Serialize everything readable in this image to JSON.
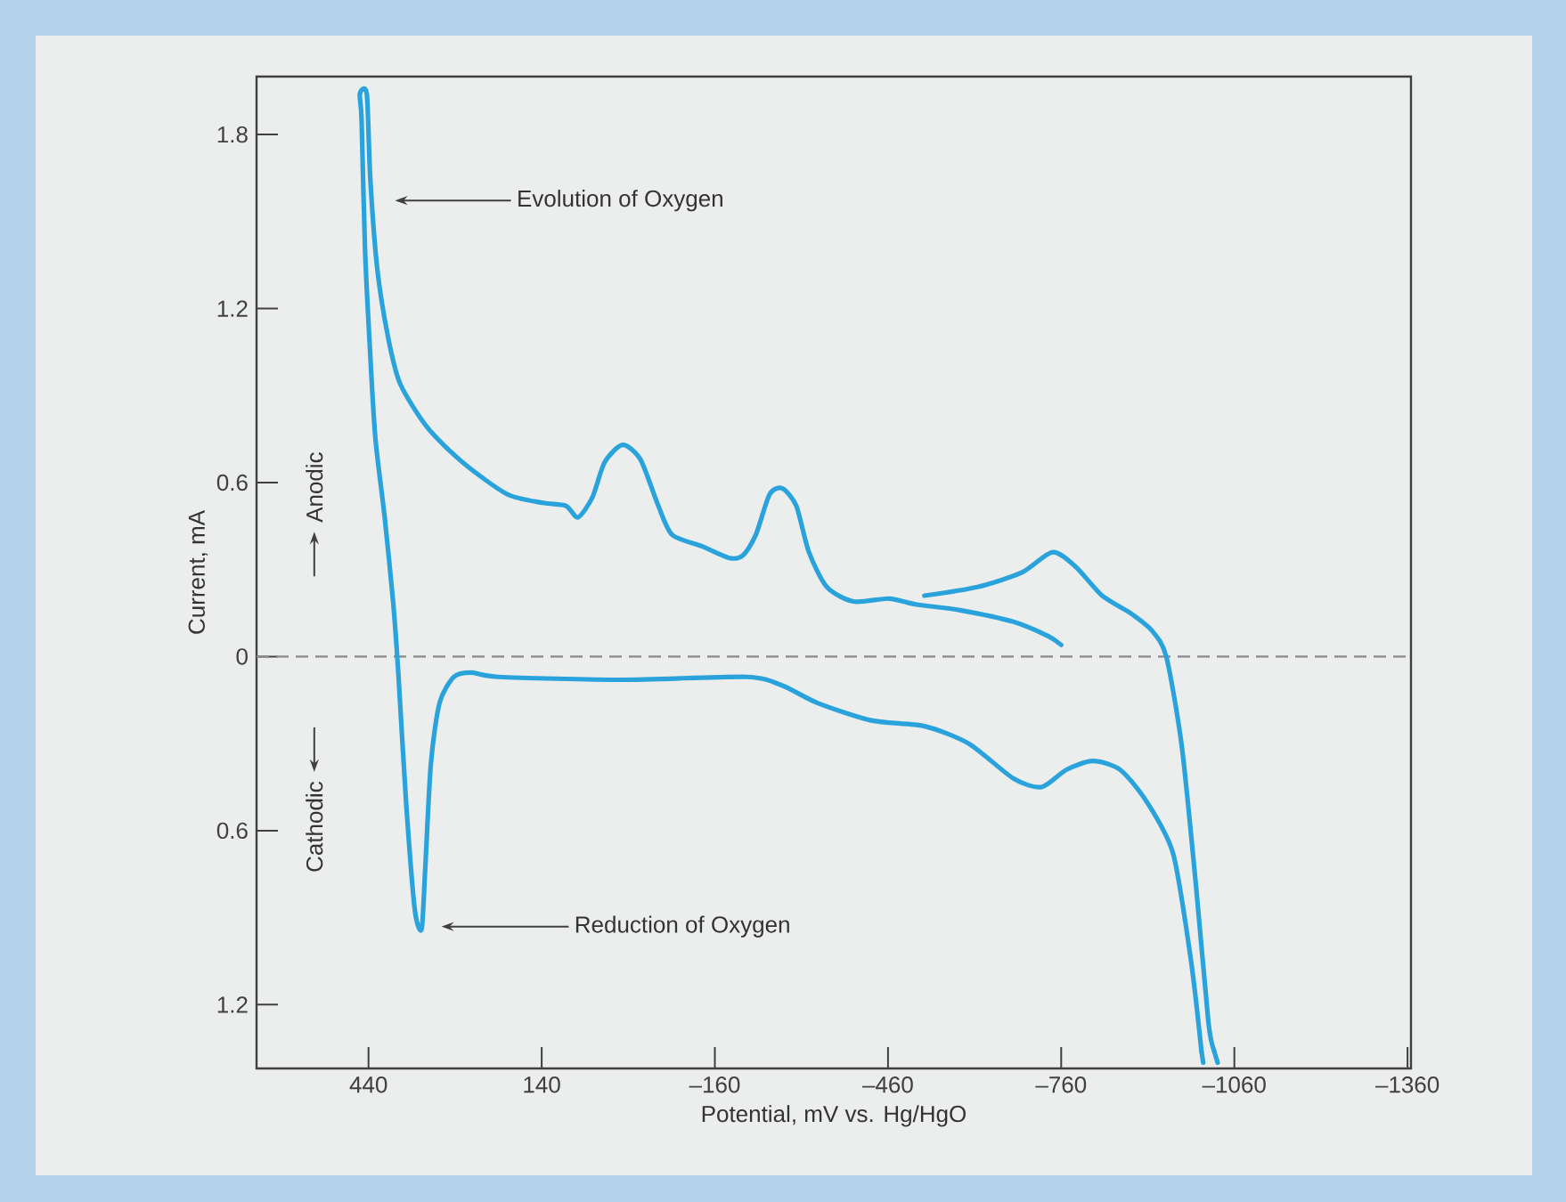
{
  "chart_data": {
    "type": "line",
    "xlabel": "Potential, mV vs. Hg/HgO",
    "ylabel": "Current, mA",
    "xlim": [
      634,
      -1366
    ],
    "ylim": [
      -1.42,
      2.0
    ],
    "xticks": [
      440,
      140,
      {
        "value": -160,
        "label": "–160"
      },
      {
        "value": -460,
        "label": "–460"
      },
      {
        "value": -760,
        "label": "–760"
      },
      {
        "value": -1060,
        "label": "–1060"
      },
      {
        "value": -1360,
        "label": "–1360"
      }
    ],
    "yticks": [
      1.8,
      1.2,
      0.6,
      0,
      {
        "value": -0.6,
        "label": "0.6"
      },
      {
        "value": -1.2,
        "label": "1.2"
      }
    ],
    "grid": false,
    "marker": "none",
    "series": [
      {
        "color": "#2aa3dc",
        "line_style": "solid",
        "x": [
          -523,
          -615,
          -692,
          -745,
          -785,
          -831,
          -880,
          -917,
          -942,
          -969,
          -994,
          -1015,
          -1025
        ],
        "values": [
          0.21,
          0.24,
          0.29,
          0.36,
          0.31,
          0.21,
          0.15,
          0.09,
          0,
          -0.31,
          -0.8,
          -1.26,
          -1.36
        ]
      },
      {
        "color": "#2aa3dc",
        "line_style": "dashed",
        "x": [
          -1025,
          -1031,
          -1018,
          -1006,
          -1003
        ],
        "values": [
          -1.36,
          -1.4,
          null,
          -1.4,
          -1.36
        ]
      },
      {
        "color": "#2aa3dc",
        "line_style": "solid",
        "x": [
          -1003,
          -985,
          -954,
          -908,
          -862,
          -815,
          -769,
          -726,
          -677,
          -600,
          -523,
          -431,
          -338,
          -277,
          -215,
          0,
          215,
          262,
          292,
          317,
          332,
          342,
          348,
          360,
          375,
          388,
          397,
          412,
          428,
          437,
          446,
          452,
          455,
          443,
          437,
          425,
          406,
          385,
          338,
          277,
          200,
          138,
          98,
          77,
          52,
          31,
          0,
          -31,
          -62,
          -86,
          -138,
          -185,
          -209,
          -231,
          -255,
          -277,
          -301,
          -323,
          -354,
          -400,
          -462,
          -508,
          -585,
          -677,
          -738,
          -760
        ],
        "values": [
          -1.36,
          -1.05,
          -0.68,
          -0.5,
          -0.39,
          -0.36,
          -0.39,
          -0.45,
          -0.42,
          -0.3,
          -0.24,
          -0.22,
          -0.16,
          -0.1,
          -0.07,
          -0.08,
          -0.07,
          -0.055,
          -0.07,
          -0.16,
          -0.37,
          -0.74,
          -0.94,
          -0.87,
          -0.5,
          -0.07,
          0.18,
          0.48,
          0.75,
          1.04,
          1.4,
          1.85,
          1.94,
          1.94,
          1.65,
          1.34,
          1.1,
          0.94,
          0.79,
          0.67,
          0.56,
          0.53,
          0.52,
          0.48,
          0.55,
          0.67,
          0.73,
          0.68,
          0.52,
          0.42,
          0.38,
          0.34,
          0.35,
          0.42,
          0.56,
          0.58,
          0.52,
          0.36,
          0.24,
          0.19,
          0.2,
          0.18,
          0.16,
          0.12,
          0.07,
          0.04
        ]
      }
    ],
    "ref_lines": [
      {
        "axis": "y",
        "value": 0,
        "color": "#8a8a8a",
        "line_style": "dashed"
      }
    ],
    "annotations": [
      "Evolution of Oxygen",
      "Reduction of Oxygen",
      "Anodic",
      "Cathodic"
    ]
  }
}
